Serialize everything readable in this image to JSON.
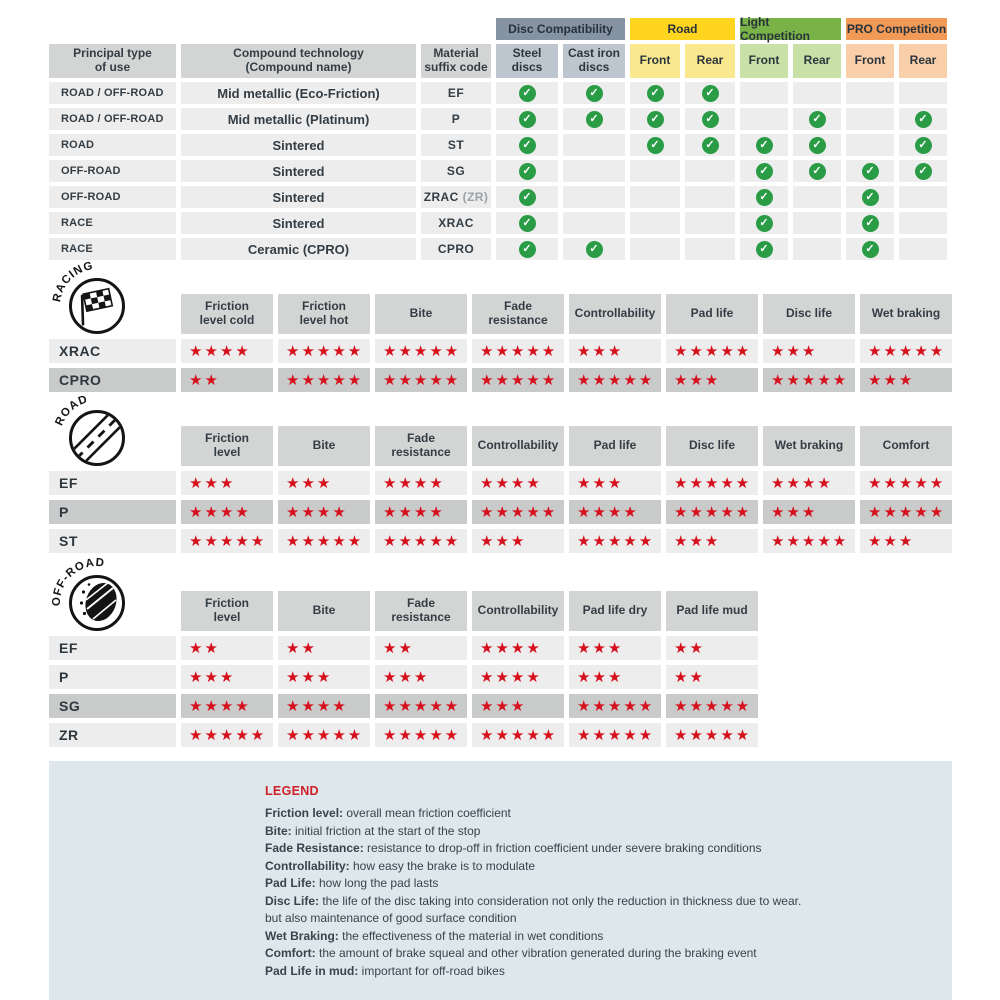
{
  "colors": {
    "cell_light": "#EDEDED",
    "cell_dark": "#C9CACA",
    "header_gray": "#D3D4D4",
    "check_green": "#2B9C46",
    "star_red": "#D6111E",
    "legend_bg": "#DEE7EB",
    "legend_title_red": "#D01F26"
  },
  "compat_table": {
    "col_headers": [
      "Principal type\nof use",
      "Compound technology\n(Compound name)",
      "Material\nsuffix code"
    ],
    "groups": [
      {
        "label": "Disc Compatibility",
        "color": "#8593A2",
        "sub_color": "#BDC5CE",
        "subs": [
          "Steel\ndiscs",
          "Cast iron\ndiscs"
        ]
      },
      {
        "label": "Road",
        "color": "#FFD520",
        "sub_color": "#FAE88F",
        "subs": [
          "Front",
          "Rear"
        ]
      },
      {
        "label": "Light Competition",
        "color": "#79B347",
        "sub_color": "#C9E0A6",
        "subs": [
          "Front",
          "Rear"
        ]
      },
      {
        "label": "PRO Competition",
        "color": "#F19A58",
        "sub_color": "#F8CFA8",
        "subs": [
          "Front",
          "Rear"
        ]
      }
    ],
    "rows": [
      {
        "use": "ROAD / OFF-ROAD",
        "tech": "Mid metallic (Eco-Friction)",
        "code": "EF",
        "code_suffix": "",
        "checks": [
          1,
          1,
          1,
          1,
          0,
          0,
          0,
          0
        ]
      },
      {
        "use": "ROAD / OFF-ROAD",
        "tech": "Mid metallic (Platinum)",
        "code": "P",
        "code_suffix": "",
        "checks": [
          1,
          1,
          1,
          1,
          0,
          1,
          0,
          1
        ]
      },
      {
        "use": "ROAD",
        "tech": "Sintered",
        "code": "ST",
        "code_suffix": "",
        "checks": [
          1,
          0,
          1,
          1,
          1,
          1,
          0,
          1
        ]
      },
      {
        "use": "OFF-ROAD",
        "tech": "Sintered",
        "code": "SG",
        "code_suffix": "",
        "checks": [
          1,
          0,
          0,
          0,
          1,
          1,
          1,
          1
        ]
      },
      {
        "use": "OFF-ROAD",
        "tech": "Sintered",
        "code": "ZRAC",
        "code_suffix": "(ZR)",
        "checks": [
          1,
          0,
          0,
          0,
          1,
          0,
          1,
          0
        ]
      },
      {
        "use": "RACE",
        "tech": "Sintered",
        "code": "XRAC",
        "code_suffix": "",
        "checks": [
          1,
          0,
          0,
          0,
          1,
          0,
          1,
          0
        ]
      },
      {
        "use": "RACE",
        "tech": "Ceramic (CPRO)",
        "code": "CPRO",
        "code_suffix": "",
        "checks": [
          1,
          1,
          0,
          0,
          1,
          0,
          1,
          0
        ]
      }
    ]
  },
  "sections": [
    {
      "id": "racing",
      "icon": "racing-flag-icon",
      "label": "RACING",
      "columns": [
        "Friction\nlevel cold",
        "Friction\nlevel hot",
        "Bite",
        "Fade\nresistance",
        "Controllability",
        "Pad life",
        "Disc life",
        "Wet braking"
      ],
      "rows": [
        {
          "code": "XRAC",
          "shade": "light",
          "stars": [
            4,
            5,
            5,
            5,
            3,
            5,
            3,
            5
          ]
        },
        {
          "code": "CPRO",
          "shade": "dark",
          "stars": [
            2,
            5,
            5,
            5,
            5,
            3,
            5,
            3
          ]
        }
      ]
    },
    {
      "id": "road",
      "icon": "road-icon",
      "label": "ROAD",
      "columns": [
        "Friction\nlevel",
        "Bite",
        "Fade\nresistance",
        "Controllability",
        "Pad life",
        "Disc life",
        "Wet braking",
        "Comfort"
      ],
      "rows": [
        {
          "code": "EF",
          "shade": "light",
          "stars": [
            3,
            3,
            4,
            4,
            3,
            5,
            4,
            5
          ]
        },
        {
          "code": "P",
          "shade": "dark",
          "stars": [
            4,
            4,
            4,
            5,
            4,
            5,
            3,
            5
          ]
        },
        {
          "code": "ST",
          "shade": "light",
          "stars": [
            5,
            5,
            5,
            3,
            5,
            3,
            5,
            3
          ]
        }
      ]
    },
    {
      "id": "offroad",
      "icon": "offroad-mud-icon",
      "label": "OFF-ROAD",
      "columns": [
        "Friction\nlevel",
        "Bite",
        "Fade\nresistance",
        "Controllability",
        "Pad life dry",
        "Pad life mud"
      ],
      "rows": [
        {
          "code": "EF",
          "shade": "light",
          "stars": [
            2,
            2,
            2,
            4,
            3,
            2
          ]
        },
        {
          "code": "P",
          "shade": "light",
          "stars": [
            3,
            3,
            3,
            4,
            3,
            2
          ]
        },
        {
          "code": "SG",
          "shade": "dark",
          "stars": [
            4,
            4,
            5,
            3,
            5,
            5
          ]
        },
        {
          "code": "ZR",
          "shade": "light",
          "stars": [
            5,
            5,
            5,
            5,
            5,
            5
          ]
        }
      ]
    }
  ],
  "legend": {
    "title": "LEGEND",
    "entries": [
      {
        "term": "Friction level",
        "desc": "overall mean friction coefficient"
      },
      {
        "term": "Bite",
        "desc": "initial friction at the start of the stop"
      },
      {
        "term": "Fade Resistance",
        "desc": "resistance to drop-off in friction coefficient under severe braking conditions"
      },
      {
        "term": "Controllability",
        "desc": "how easy the brake is to modulate"
      },
      {
        "term": "Pad Life",
        "desc": "how long the pad lasts"
      },
      {
        "term": "Disc Life",
        "desc": "the life of the disc taking into consideration not only the reduction in thickness due to wear."
      },
      {
        "term": "",
        "desc": "but also maintenance of good surface condition"
      },
      {
        "term": "Wet Braking",
        "desc": "the effectiveness of the material in wet conditions"
      },
      {
        "term": "Comfort",
        "desc": "the amount of brake squeal and other vibration generated during the braking event"
      },
      {
        "term": "Pad Life in mud",
        "desc": "important for off-road bikes"
      }
    ]
  }
}
